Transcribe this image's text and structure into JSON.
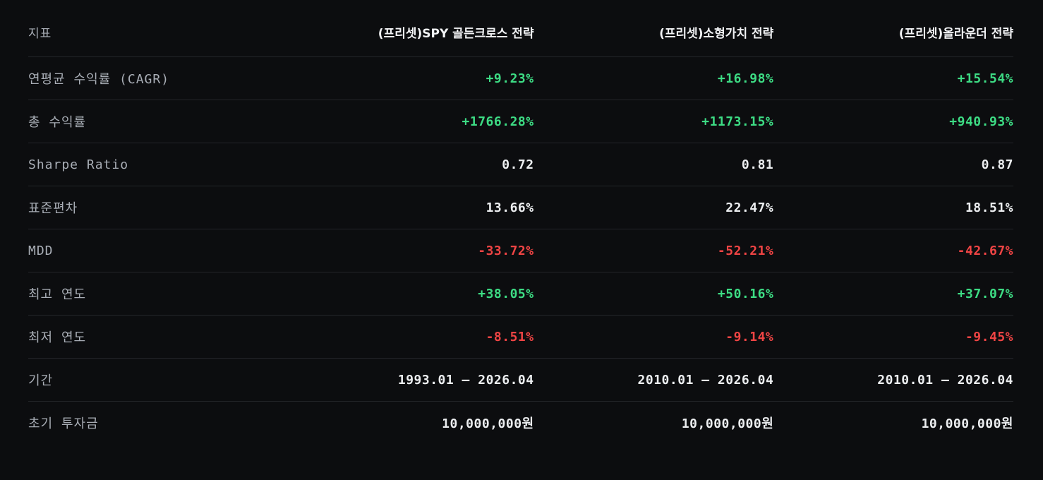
{
  "theme": {
    "background": "#0c0d0f",
    "header_text": "#f2f3f5",
    "label_text": "#a9aeb6",
    "value_text": "#eceef0",
    "positive": "#3ddc84",
    "negative": "#ef4444",
    "border": "#232529"
  },
  "table": {
    "columns": [
      "지표",
      "(프리셋)SPY 골든크로스 전략",
      "(프리셋)소형가치 전략",
      "(프리셋)올라운더 전략"
    ],
    "rows": [
      {
        "label": "연평균 수익률 (CAGR)",
        "tone": "positive",
        "values": [
          "+9.23%",
          "+16.98%",
          "+15.54%"
        ]
      },
      {
        "label": "총 수익률",
        "tone": "positive",
        "values": [
          "+1766.28%",
          "+1173.15%",
          "+940.93%"
        ]
      },
      {
        "label": "Sharpe Ratio",
        "tone": "neutral",
        "values": [
          "0.72",
          "0.81",
          "0.87"
        ]
      },
      {
        "label": "표준편차",
        "tone": "neutral",
        "values": [
          "13.66%",
          "22.47%",
          "18.51%"
        ]
      },
      {
        "label": "MDD",
        "tone": "negative",
        "values": [
          "-33.72%",
          "-52.21%",
          "-42.67%"
        ]
      },
      {
        "label": "최고 연도",
        "tone": "positive",
        "values": [
          "+38.05%",
          "+50.16%",
          "+37.07%"
        ]
      },
      {
        "label": "최저 연도",
        "tone": "negative",
        "values": [
          "-8.51%",
          "-9.14%",
          "-9.45%"
        ]
      },
      {
        "label": "기간",
        "tone": "neutral",
        "values": [
          "1993.01 — 2026.04",
          "2010.01 — 2026.04",
          "2010.01 — 2026.04"
        ]
      },
      {
        "label": "초기 투자금",
        "tone": "neutral",
        "values": [
          "10,000,000원",
          "10,000,000원",
          "10,000,000원"
        ]
      }
    ]
  }
}
